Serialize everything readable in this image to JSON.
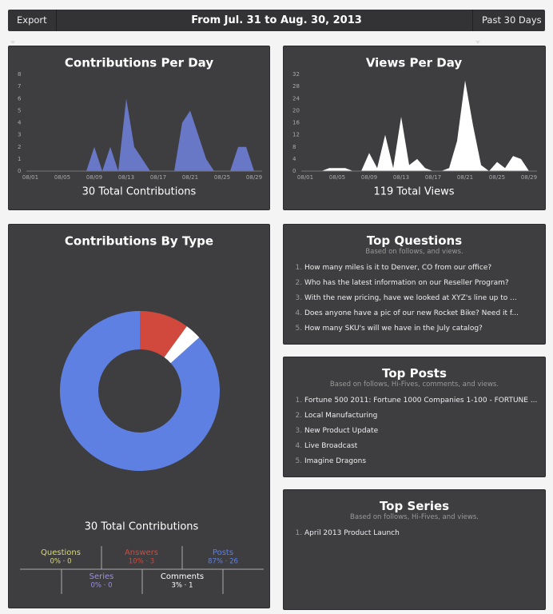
{
  "toolbar": {
    "export": "Export",
    "range_title": "From Jul. 31 to Aug. 30, 2013",
    "period": "Past 30 Days"
  },
  "chart_data": [
    {
      "type": "area",
      "title": "Contributions Per Day",
      "footer": "30 Total Contributions",
      "color": "#6877c6",
      "categories": [
        "08/01",
        null,
        null,
        null,
        "08/05",
        null,
        null,
        null,
        "08/09",
        null,
        null,
        null,
        "08/13",
        null,
        null,
        null,
        "08/17",
        null,
        null,
        null,
        "08/21",
        null,
        null,
        null,
        "08/25",
        null,
        null,
        null,
        "08/29",
        null
      ],
      "values": [
        0,
        0,
        0,
        0,
        0,
        0,
        0,
        0,
        2,
        0,
        2,
        0,
        6,
        2,
        1,
        0,
        0,
        0,
        0,
        4,
        5,
        3,
        1,
        0,
        0,
        0,
        2,
        2,
        0,
        0
      ],
      "ylim": [
        0,
        8
      ],
      "yticks": [
        0,
        1,
        2,
        3,
        4,
        5,
        6,
        7,
        8
      ]
    },
    {
      "type": "area",
      "title": "Views Per Day",
      "footer": "119 Total Views",
      "color": "#ffffff",
      "categories": [
        "08/01",
        null,
        null,
        null,
        "08/05",
        null,
        null,
        null,
        "08/09",
        null,
        null,
        null,
        "08/13",
        null,
        null,
        null,
        "08/17",
        null,
        null,
        null,
        "08/21",
        null,
        null,
        null,
        "08/25",
        null,
        null,
        null,
        "08/29",
        null
      ],
      "values": [
        0,
        0,
        0,
        1,
        1,
        1,
        0,
        0,
        6,
        1,
        12,
        1,
        18,
        2,
        4,
        1,
        0,
        0,
        1,
        10,
        30,
        15,
        2,
        0,
        3,
        1,
        5,
        4,
        0,
        0
      ],
      "ylim": [
        0,
        32
      ],
      "yticks": [
        0,
        4,
        8,
        12,
        16,
        20,
        24,
        28,
        32
      ]
    },
    {
      "type": "donut",
      "title": "Contributions By Type",
      "footer": "30 Total Contributions",
      "slices": [
        {
          "name": "Questions",
          "color": "#d9d97e",
          "value": 0,
          "label": "0% · 0"
        },
        {
          "name": "Answers",
          "color": "#d0493c",
          "value": 3,
          "label": "10% · 3"
        },
        {
          "name": "Comments",
          "color": "#ffffff",
          "value": 1,
          "label": "3% · 1"
        },
        {
          "name": "Posts",
          "color": "#5e80e2",
          "value": 26,
          "label": "87% · 26"
        },
        {
          "name": "Series",
          "color": "#9d8ee4",
          "value": 0,
          "label": "0% · 0"
        }
      ]
    }
  ],
  "lists": [
    {
      "title": "Top Questions",
      "subtitle": "Based on follows, and views.",
      "items": [
        "How many miles is it to Denver, CO from our office?",
        "Who has the latest information on our Reseller Program?",
        "With the new pricing, have we looked at XYZ's line up to ...",
        "Does anyone have a pic of our new Rocket Bike? Need it f...",
        "How many SKU's will we have in the July catalog?"
      ]
    },
    {
      "title": "Top Posts",
      "subtitle": "Based on follows, Hi-Fives, comments, and views.",
      "items": [
        "Fortune 500 2011: Fortune 1000 Companies 1-100 - FORTUNE ...",
        "Local Manufacturing",
        "New Product Update",
        "Live Broadcast",
        "Imagine Dragons"
      ]
    },
    {
      "title": "Top Series",
      "subtitle": "Based on follows, Hi-Fives, and views.",
      "items": [
        "April 2013 Product Launch"
      ]
    }
  ]
}
